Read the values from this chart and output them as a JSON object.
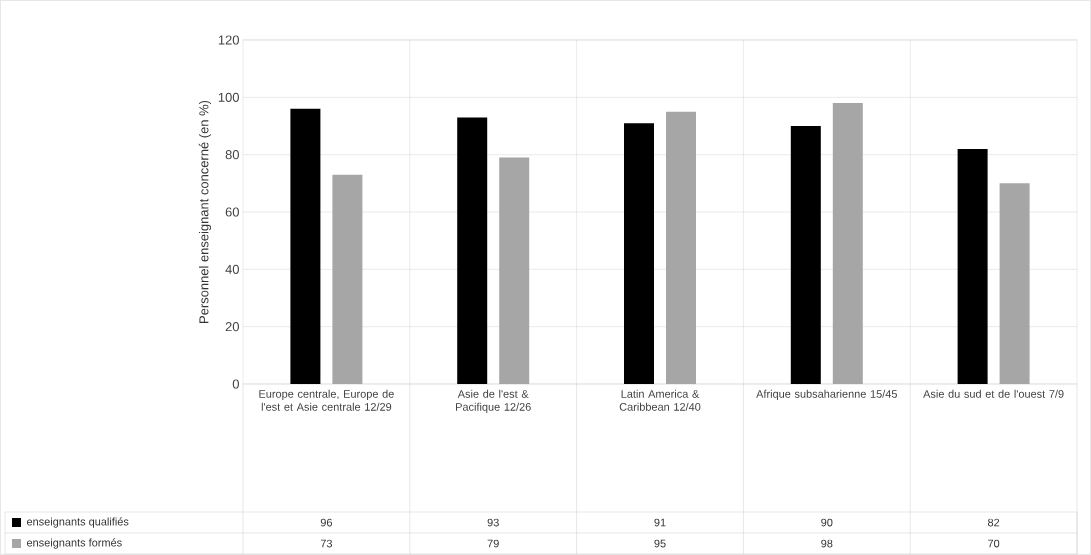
{
  "chart_data": {
    "type": "bar",
    "ylabel": "Personnel enseignant concerné (en %)",
    "categories": [
      "Europe centrale, Europe de l'est et Asie centrale 12/29",
      "Asie de l'est & Pacifique 12/26",
      "Latin America & Caribbean 12/40",
      "Afrique subsaharienne 15/45",
      "Asie du sud et de l'ouest 7/9"
    ],
    "series": [
      {
        "name": "enseignants qualifiés",
        "color": "#000000",
        "values": [
          96,
          93,
          91,
          90,
          82
        ],
        "value_labels": [
          "96",
          "93",
          "91",
          "90",
          "82"
        ]
      },
      {
        "name": "enseignants formés",
        "color": "#a6a6a6",
        "values": [
          73,
          79,
          95,
          98,
          70
        ],
        "value_labels": [
          "73",
          "79",
          "95",
          "98",
          "70"
        ]
      }
    ],
    "ylim": [
      0,
      120
    ],
    "yticks": [
      0,
      20,
      40,
      60,
      80,
      100,
      120
    ],
    "grid": "y",
    "legend": "bottom"
  }
}
